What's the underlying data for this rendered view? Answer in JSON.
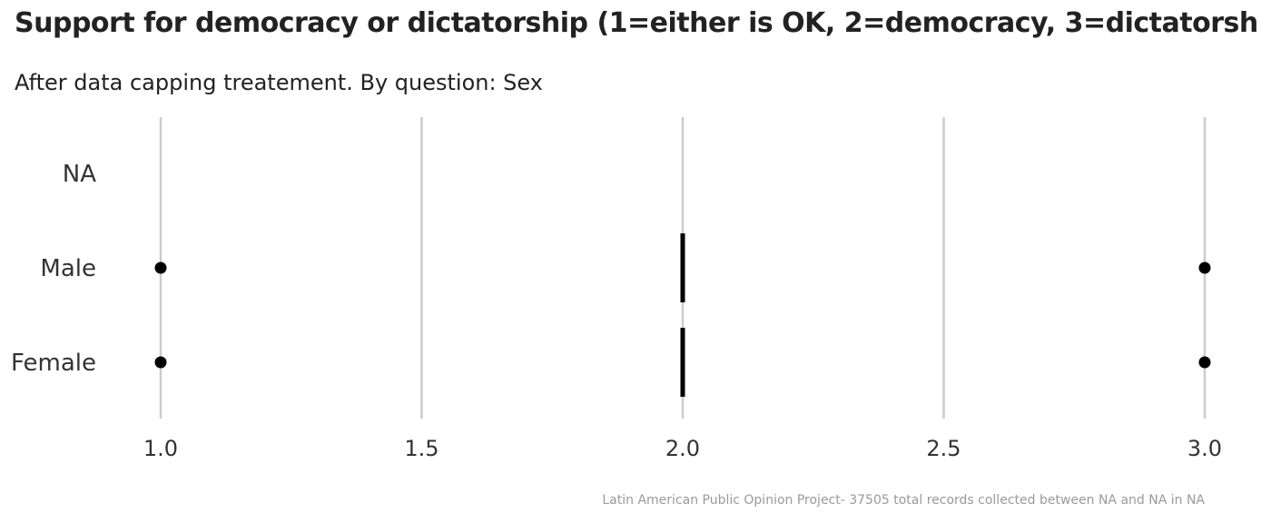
{
  "chart_data": {
    "type": "boxplot",
    "title": "Support for democracy or dictatorship (1=either is OK, 2=democracy, 3=dictatorsh",
    "subtitle": "After data capping treatement. By question: Sex",
    "caption": "Latin American Public Opinion Project- 37505 total records collected between NA and NA in  NA",
    "xlabel": "",
    "ylabel": "",
    "xlim": [
      1.0,
      3.0
    ],
    "x_ticks": [
      "1.0",
      "1.5",
      "2.0",
      "2.5",
      "3.0"
    ],
    "x_tick_values": [
      1.0,
      1.5,
      2.0,
      2.5,
      3.0
    ],
    "categories": [
      "NA",
      "Male",
      "Female"
    ],
    "grid": "vertical major gridlines",
    "grid_color": "#cccccc",
    "mark_color": "#000000",
    "groups": [
      {
        "category": "NA",
        "box": null,
        "outliers": []
      },
      {
        "category": "Male",
        "box": {
          "q1": 2,
          "median": 2,
          "q3": 2
        },
        "outliers": [
          1,
          3
        ]
      },
      {
        "category": "Female",
        "box": {
          "q1": 2,
          "median": 2,
          "q3": 2
        },
        "outliers": [
          1,
          3
        ]
      }
    ]
  }
}
